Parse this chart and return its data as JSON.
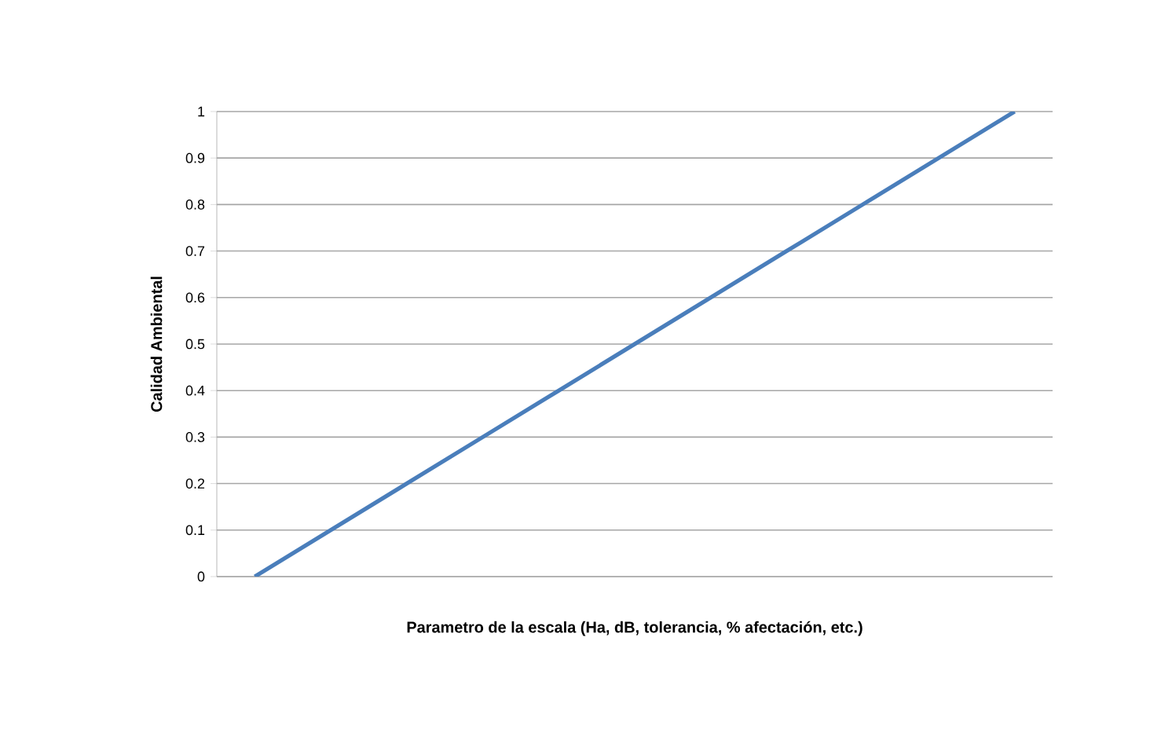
{
  "chart_data": {
    "type": "line",
    "xlabel": "Parametro de la escala (Ha, dB, tolerancia, % afectación, etc.)",
    "ylabel": "Calidad Ambiental",
    "categories": [
      null,
      null,
      null,
      null,
      null,
      null,
      null,
      null,
      null,
      null,
      null
    ],
    "series": [
      {
        "color": "#4a7ebb",
        "values": [
          0,
          0.1,
          0.2,
          0.3,
          0.4,
          0.5,
          0.6,
          0.7,
          0.8,
          0.9,
          1
        ]
      }
    ],
    "ylim": [
      0,
      1
    ],
    "yticks": [
      0,
      0.1,
      0.2,
      0.3,
      0.4,
      0.5,
      0.6,
      0.7,
      0.8,
      0.9,
      1
    ],
    "grid": "y",
    "marker": "none",
    "line_style": "solid"
  }
}
